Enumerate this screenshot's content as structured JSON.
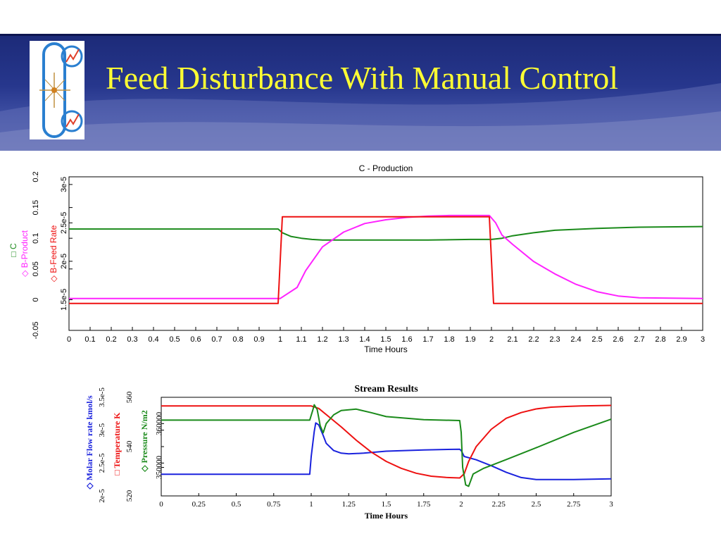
{
  "slide": {
    "title": "Feed Disturbance With Manual Control"
  },
  "colors": {
    "green": "#1a8a1a",
    "magenta": "#ff22ff",
    "red": "#ee1111",
    "blue": "#1a22dd",
    "title": "#ffff33"
  },
  "chart_data": [
    {
      "type": "line",
      "title": "C - Production",
      "xlabel": "Time Hours",
      "xlim": [
        0,
        3
      ],
      "x_ticks": [
        "0",
        "0.1",
        "0.2",
        "0.3",
        "0.4",
        "0.5",
        "0.6",
        "0.7",
        "0.8",
        "0.9",
        "1",
        "1.1",
        "1.2",
        "1.3",
        "1.4",
        "1.5",
        "1.6",
        "1.7",
        "1.8",
        "1.9",
        "2",
        "2.1",
        "2.2",
        "2.3",
        "2.4",
        "2.5",
        "2.6",
        "2.7",
        "2.8",
        "2.9",
        "3"
      ],
      "y_axes": [
        {
          "label": "C",
          "label2": "B-Product",
          "marker": "□",
          "marker2": "◇",
          "range": [
            -0.05,
            0.2
          ],
          "ticks": [
            "-0.05",
            "0",
            "0.05",
            "0.1",
            "0.15",
            "0.2"
          ]
        },
        {
          "label": "B-Feed Rate",
          "marker": "◇",
          "range": [
            1.1e-05,
            3.1e-05
          ],
          "ticks": [
            "1.5e-5",
            "2e-5",
            "2.5e-5",
            "3e-5"
          ]
        }
      ],
      "series": [
        {
          "name": "C",
          "axis": 0,
          "color": "#1a8a1a",
          "x": [
            0,
            0.99,
            1.01,
            1.05,
            1.1,
            1.15,
            1.2,
            1.3,
            1.5,
            1.7,
            1.9,
            2.0,
            2.05,
            2.1,
            2.2,
            2.3,
            2.5,
            2.7,
            3.0
          ],
          "y": [
            0.115,
            0.115,
            0.109,
            0.103,
            0.1,
            0.098,
            0.097,
            0.097,
            0.097,
            0.097,
            0.098,
            0.098,
            0.1,
            0.104,
            0.109,
            0.113,
            0.116,
            0.118,
            0.119
          ]
        },
        {
          "name": "B-Product",
          "axis": 0,
          "color": "#ff22ff",
          "x": [
            0,
            1.0,
            1.08,
            1.12,
            1.2,
            1.3,
            1.4,
            1.5,
            1.6,
            1.7,
            1.8,
            1.9,
            1.99,
            2.02,
            2.05,
            2.1,
            2.2,
            2.3,
            2.4,
            2.5,
            2.6,
            2.7,
            3.0
          ],
          "y": [
            0.002,
            0.002,
            0.02,
            0.047,
            0.086,
            0.11,
            0.124,
            0.13,
            0.134,
            0.136,
            0.137,
            0.137,
            0.137,
            0.125,
            0.105,
            0.09,
            0.062,
            0.042,
            0.025,
            0.013,
            0.006,
            0.003,
            0.002
          ]
        },
        {
          "name": "B-Feed Rate",
          "axis": 1,
          "color": "#ee1111",
          "x": [
            0,
            0.99,
            1.01,
            1.99,
            2.01,
            3.0
          ],
          "y": [
            1.45e-05,
            1.45e-05,
            2.58e-05,
            2.58e-05,
            1.45e-05,
            1.45e-05
          ]
        }
      ]
    },
    {
      "type": "line",
      "title": "Stream Results",
      "xlabel": "Time Hours",
      "xlim": [
        0,
        3
      ],
      "x_ticks": [
        "0",
        "0.25",
        "0.5",
        "0.75",
        "1",
        "1.25",
        "1.5",
        "1.75",
        "2",
        "2.25",
        "2.5",
        "2.75",
        "3"
      ],
      "y_axes": [
        {
          "label": "Molar Flow rate kmol/s",
          "marker": "◇",
          "range": [
            2e-05,
            3.5e-05
          ],
          "ticks": [
            "2e-5",
            "2.5e-5",
            "3e-5",
            "3.5e-5"
          ]
        },
        {
          "label": "Temperature K",
          "marker": "□",
          "range": [
            520,
            560
          ],
          "ticks": [
            "520",
            "540",
            "560"
          ]
        },
        {
          "label": "Pressure N/m2",
          "marker": "◇",
          "range": [
            343500,
            366000
          ],
          "ticks": [
            "350000",
            "360000"
          ]
        }
      ],
      "series": [
        {
          "name": "Molar Flow rate kmol/s",
          "axis": 0,
          "color": "#1a22dd",
          "x": [
            0,
            0.99,
            1.0,
            1.02,
            1.03,
            1.05,
            1.08,
            1.1,
            1.15,
            1.2,
            1.25,
            1.35,
            1.5,
            1.75,
            1.99,
            2.0,
            2.02,
            2.1,
            2.2,
            2.3,
            2.4,
            2.5,
            2.75,
            3.0
          ],
          "y": [
            2.33e-05,
            2.33e-05,
            2.6e-05,
            2.98e-05,
            3.11e-05,
            3.08e-05,
            2.92e-05,
            2.8e-05,
            2.69e-05,
            2.65e-05,
            2.64e-05,
            2.65e-05,
            2.68e-05,
            2.7e-05,
            2.71e-05,
            2.69e-05,
            2.6e-05,
            2.55e-05,
            2.46e-05,
            2.36e-05,
            2.28e-05,
            2.25e-05,
            2.25e-05,
            2.26e-05
          ]
        },
        {
          "name": "Temperature K",
          "axis": 1,
          "color": "#ee1111",
          "x": [
            0,
            1.0,
            1.05,
            1.1,
            1.2,
            1.3,
            1.4,
            1.5,
            1.6,
            1.7,
            1.8,
            1.9,
            1.99,
            2.02,
            2.05,
            2.1,
            2.2,
            2.3,
            2.4,
            2.5,
            2.6,
            2.7,
            2.8,
            3.0
          ],
          "y": [
            556.5,
            556.5,
            555.5,
            553.0,
            548.0,
            542.6,
            537.8,
            534.0,
            531.2,
            529.2,
            528.0,
            527.5,
            527.3,
            529.0,
            534.0,
            540.0,
            547.0,
            551.5,
            553.8,
            555.3,
            556.0,
            556.3,
            556.5,
            556.7
          ]
        },
        {
          "name": "Pressure N/m2",
          "axis": 2,
          "color": "#1a8a1a",
          "x": [
            0,
            0.99,
            1.01,
            1.02,
            1.04,
            1.06,
            1.08,
            1.1,
            1.15,
            1.2,
            1.3,
            1.4,
            1.5,
            1.75,
            1.99,
            2.0,
            2.01,
            2.03,
            2.05,
            2.08,
            2.15,
            2.3,
            2.5,
            2.75,
            3.0
          ],
          "y": [
            360800,
            360800,
            363000,
            364300,
            363200,
            359500,
            357900,
            360000,
            362000,
            363000,
            363300,
            362500,
            361600,
            360900,
            360700,
            358000,
            350000,
            346000,
            345700,
            348500,
            349800,
            351800,
            354500,
            358000,
            361000
          ]
        }
      ]
    }
  ]
}
